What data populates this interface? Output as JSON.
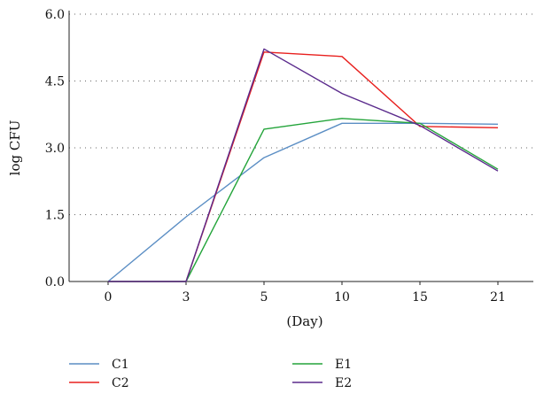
{
  "chart_data": {
    "type": "line",
    "title": "",
    "xlabel": "(Day)",
    "ylabel": "log CFU",
    "categories": [
      "0",
      "3",
      "5",
      "10",
      "15",
      "21"
    ],
    "ylim": [
      0,
      6
    ],
    "yticks": [
      "0.0",
      "1.5",
      "3.0",
      "4.5",
      "6.0"
    ],
    "grid": "horizontal dotted",
    "legend_placement": "bottom",
    "series": [
      {
        "name": "C1",
        "color": "#5b8ec4",
        "values": [
          0,
          1.45,
          2.78,
          3.55,
          3.55,
          3.53
        ]
      },
      {
        "name": "C2",
        "color": "#e8201e",
        "values": [
          0,
          0,
          5.15,
          5.05,
          3.48,
          3.45
        ]
      },
      {
        "name": "E1",
        "color": "#23a43a",
        "values": [
          0,
          0,
          3.42,
          3.66,
          3.55,
          2.52
        ]
      },
      {
        "name": "E2",
        "color": "#5a2a8c",
        "values": [
          0,
          0,
          5.22,
          4.22,
          3.5,
          2.48
        ]
      }
    ]
  }
}
